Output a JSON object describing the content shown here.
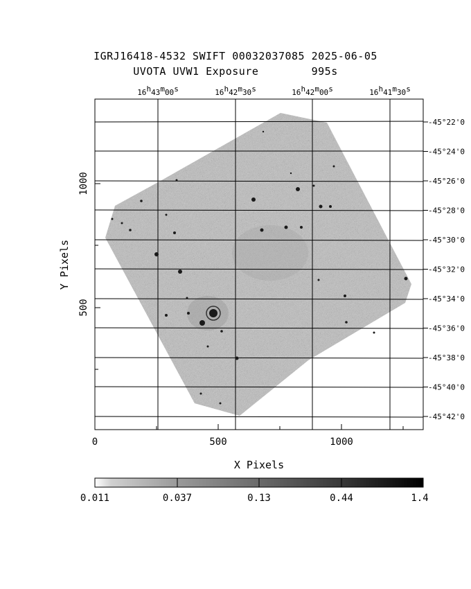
{
  "header": {
    "title_line1": "IGRJ16418-4532 SWIFT 00032037085 2025-06-05",
    "title_line2": "UVOTA UVW1 Exposure        995s"
  },
  "axes": {
    "xlabel": "X Pixels",
    "ylabel": "Y Pixels",
    "x_ticks": [
      "0",
      "500",
      "1000"
    ],
    "y_ticks": [
      "500",
      "1000"
    ],
    "ra_labels": [
      {
        "h": "16",
        "m": "43",
        "s": "00"
      },
      {
        "h": "16",
        "m": "42",
        "s": "30"
      },
      {
        "h": "16",
        "m": "42",
        "s": "00"
      },
      {
        "h": "16",
        "m": "41",
        "s": "30"
      }
    ],
    "dec_labels": [
      "-45°22'0",
      "-45°24'0",
      "-45°26'0",
      "-45°28'0",
      "-45°30'0",
      "-45°32'0",
      "-45°34'0",
      "-45°36'0",
      "-45°38'0",
      "-45°40'0",
      "-45°42'0"
    ]
  },
  "colorbar": {
    "labels": [
      "0.011",
      "0.037",
      "0.13",
      "0.44",
      "1.4"
    ],
    "low_color": "#ffffff",
    "high_color": "#000000"
  },
  "image": {
    "field_color": "#a8a8a8",
    "source_color": "#1a1a1a"
  }
}
